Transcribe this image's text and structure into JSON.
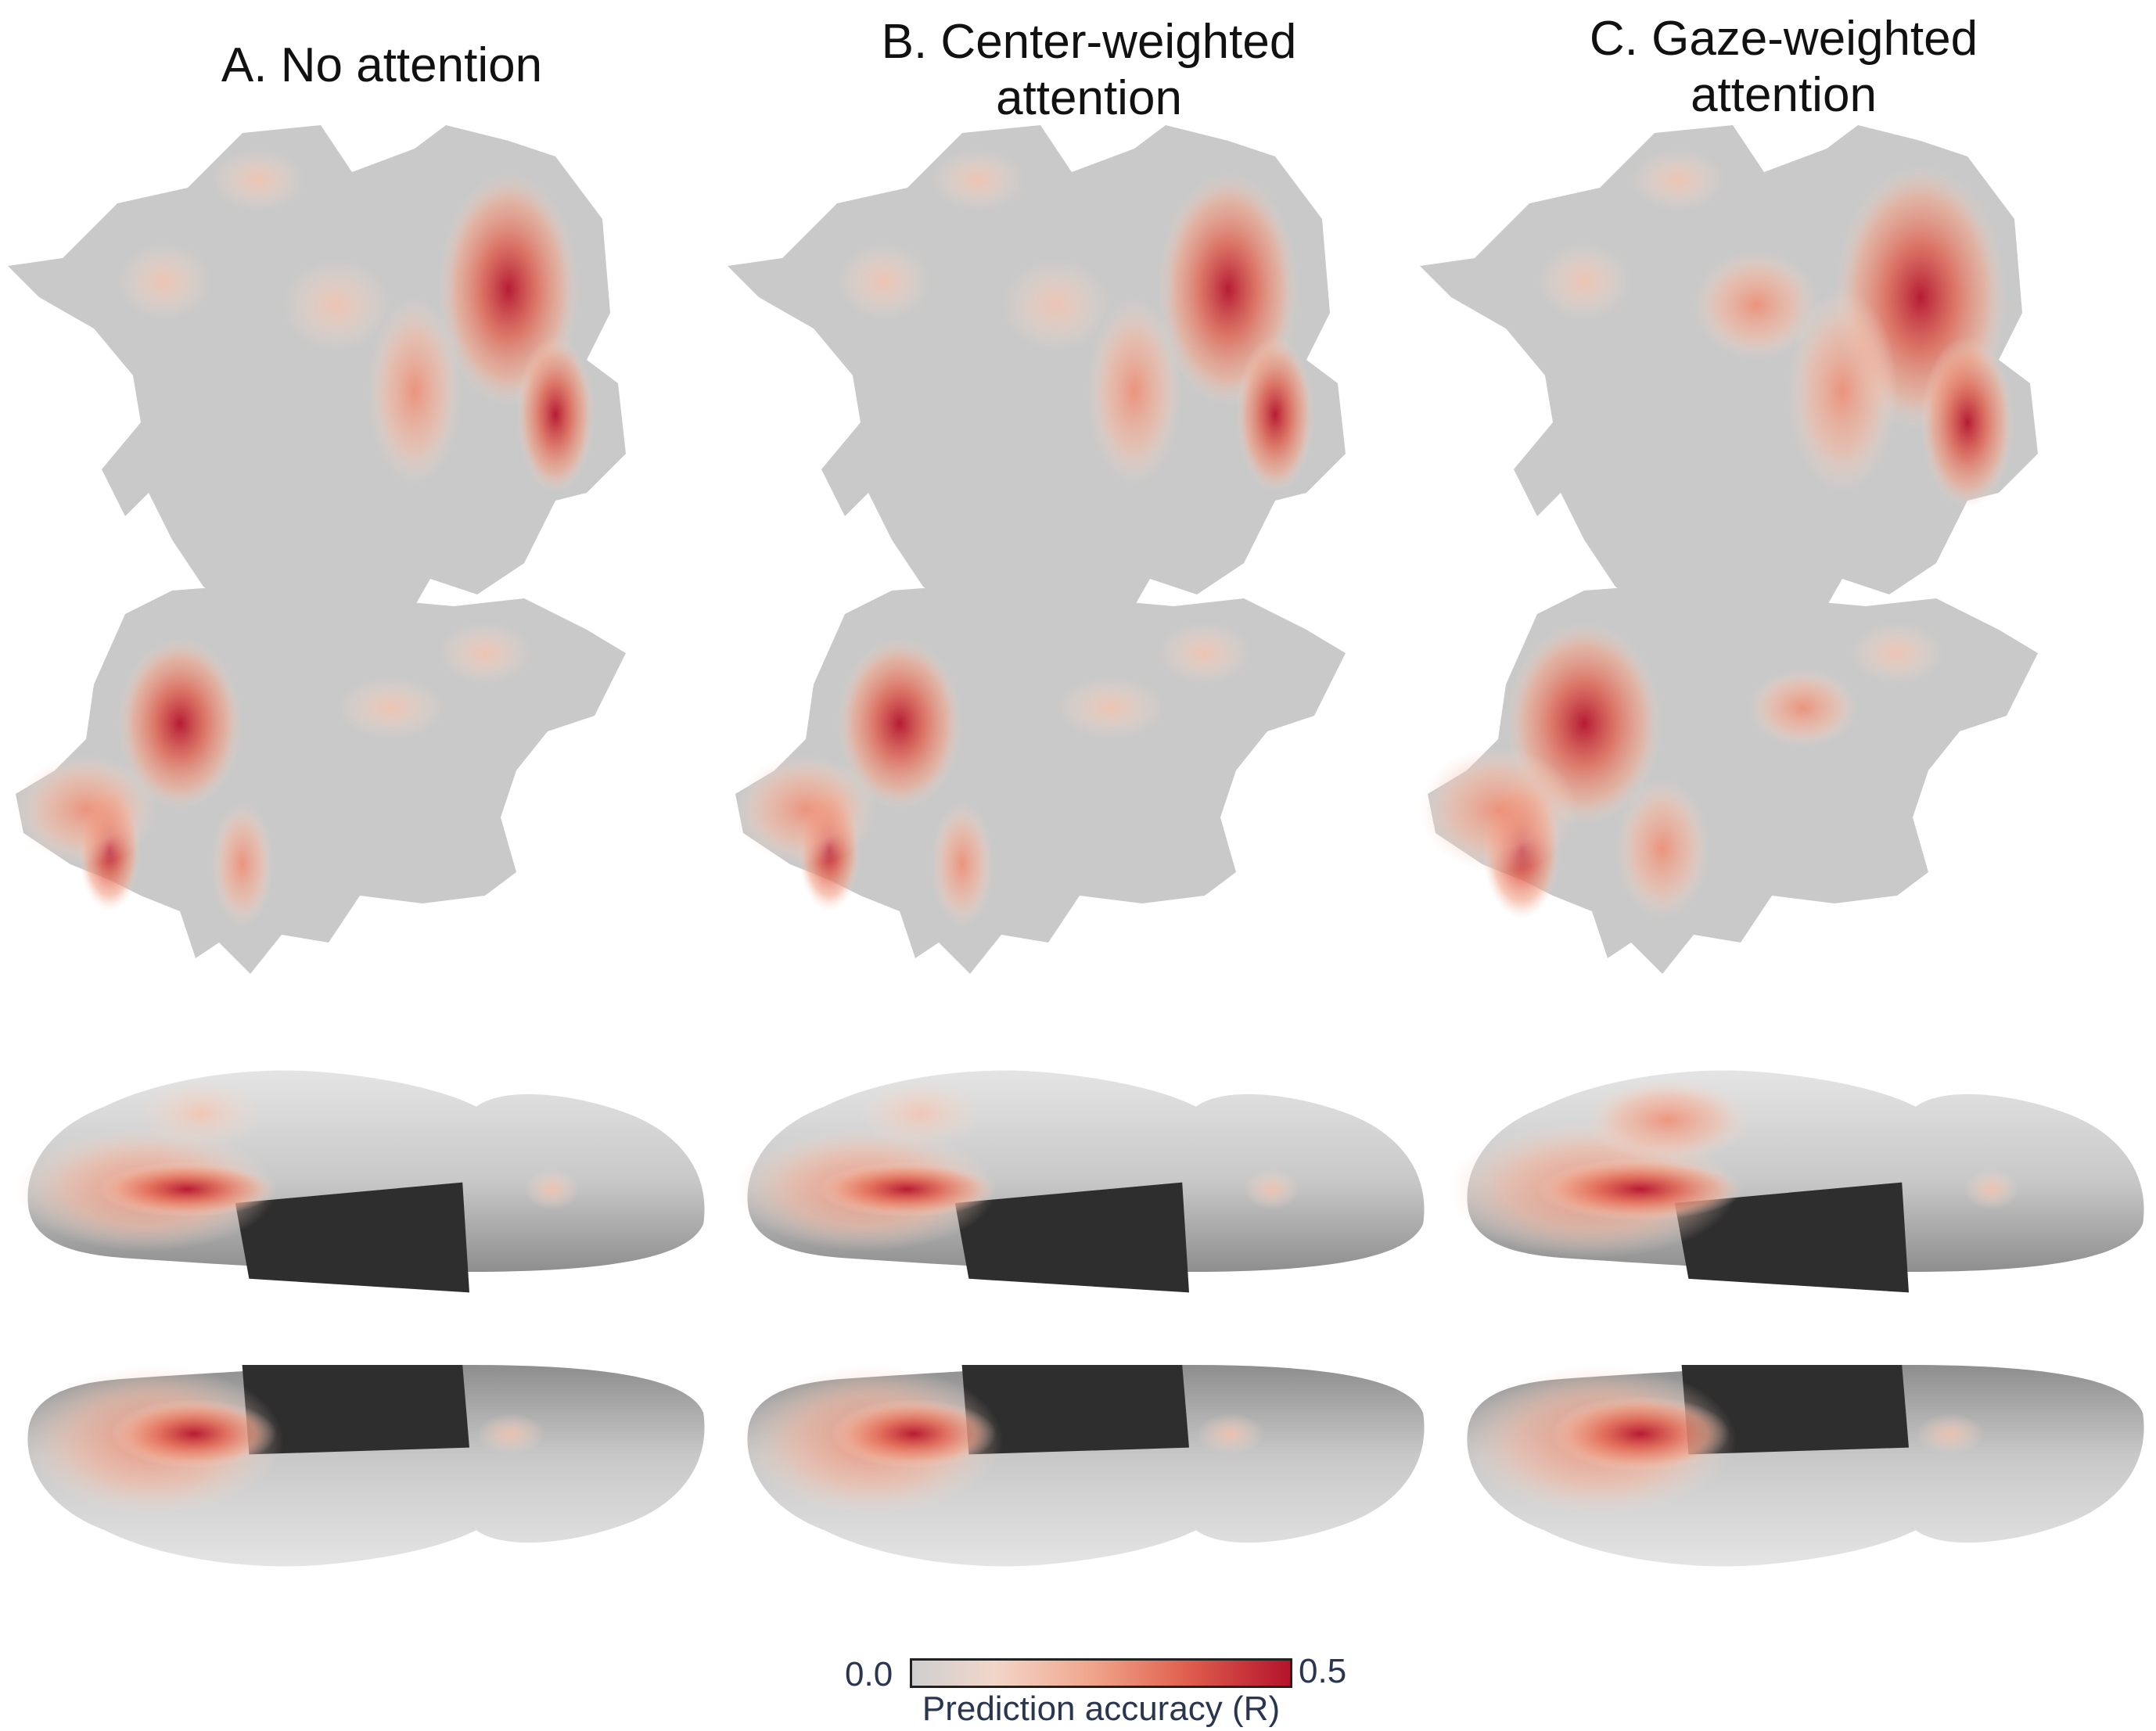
{
  "panels": [
    {
      "title_line1": "A. No attention",
      "title_line2": ""
    },
    {
      "title_line1": "B. Center-weighted",
      "title_line2": "attention"
    },
    {
      "title_line1": "C. Gaze-weighted",
      "title_line2": "attention"
    }
  ],
  "colorbar": {
    "min_label": "0.0",
    "max_label": "0.5",
    "label": "Prediction accuracy (R)",
    "colors": [
      "#cfcfcf",
      "#f2d6c9",
      "#f0a48a",
      "#e0614f",
      "#b5132c"
    ]
  },
  "colors": {
    "cortex_gray": "#c9c9c9",
    "medial_wall": "#2e2e2e",
    "inflated_surface": "#cdcdcd"
  }
}
